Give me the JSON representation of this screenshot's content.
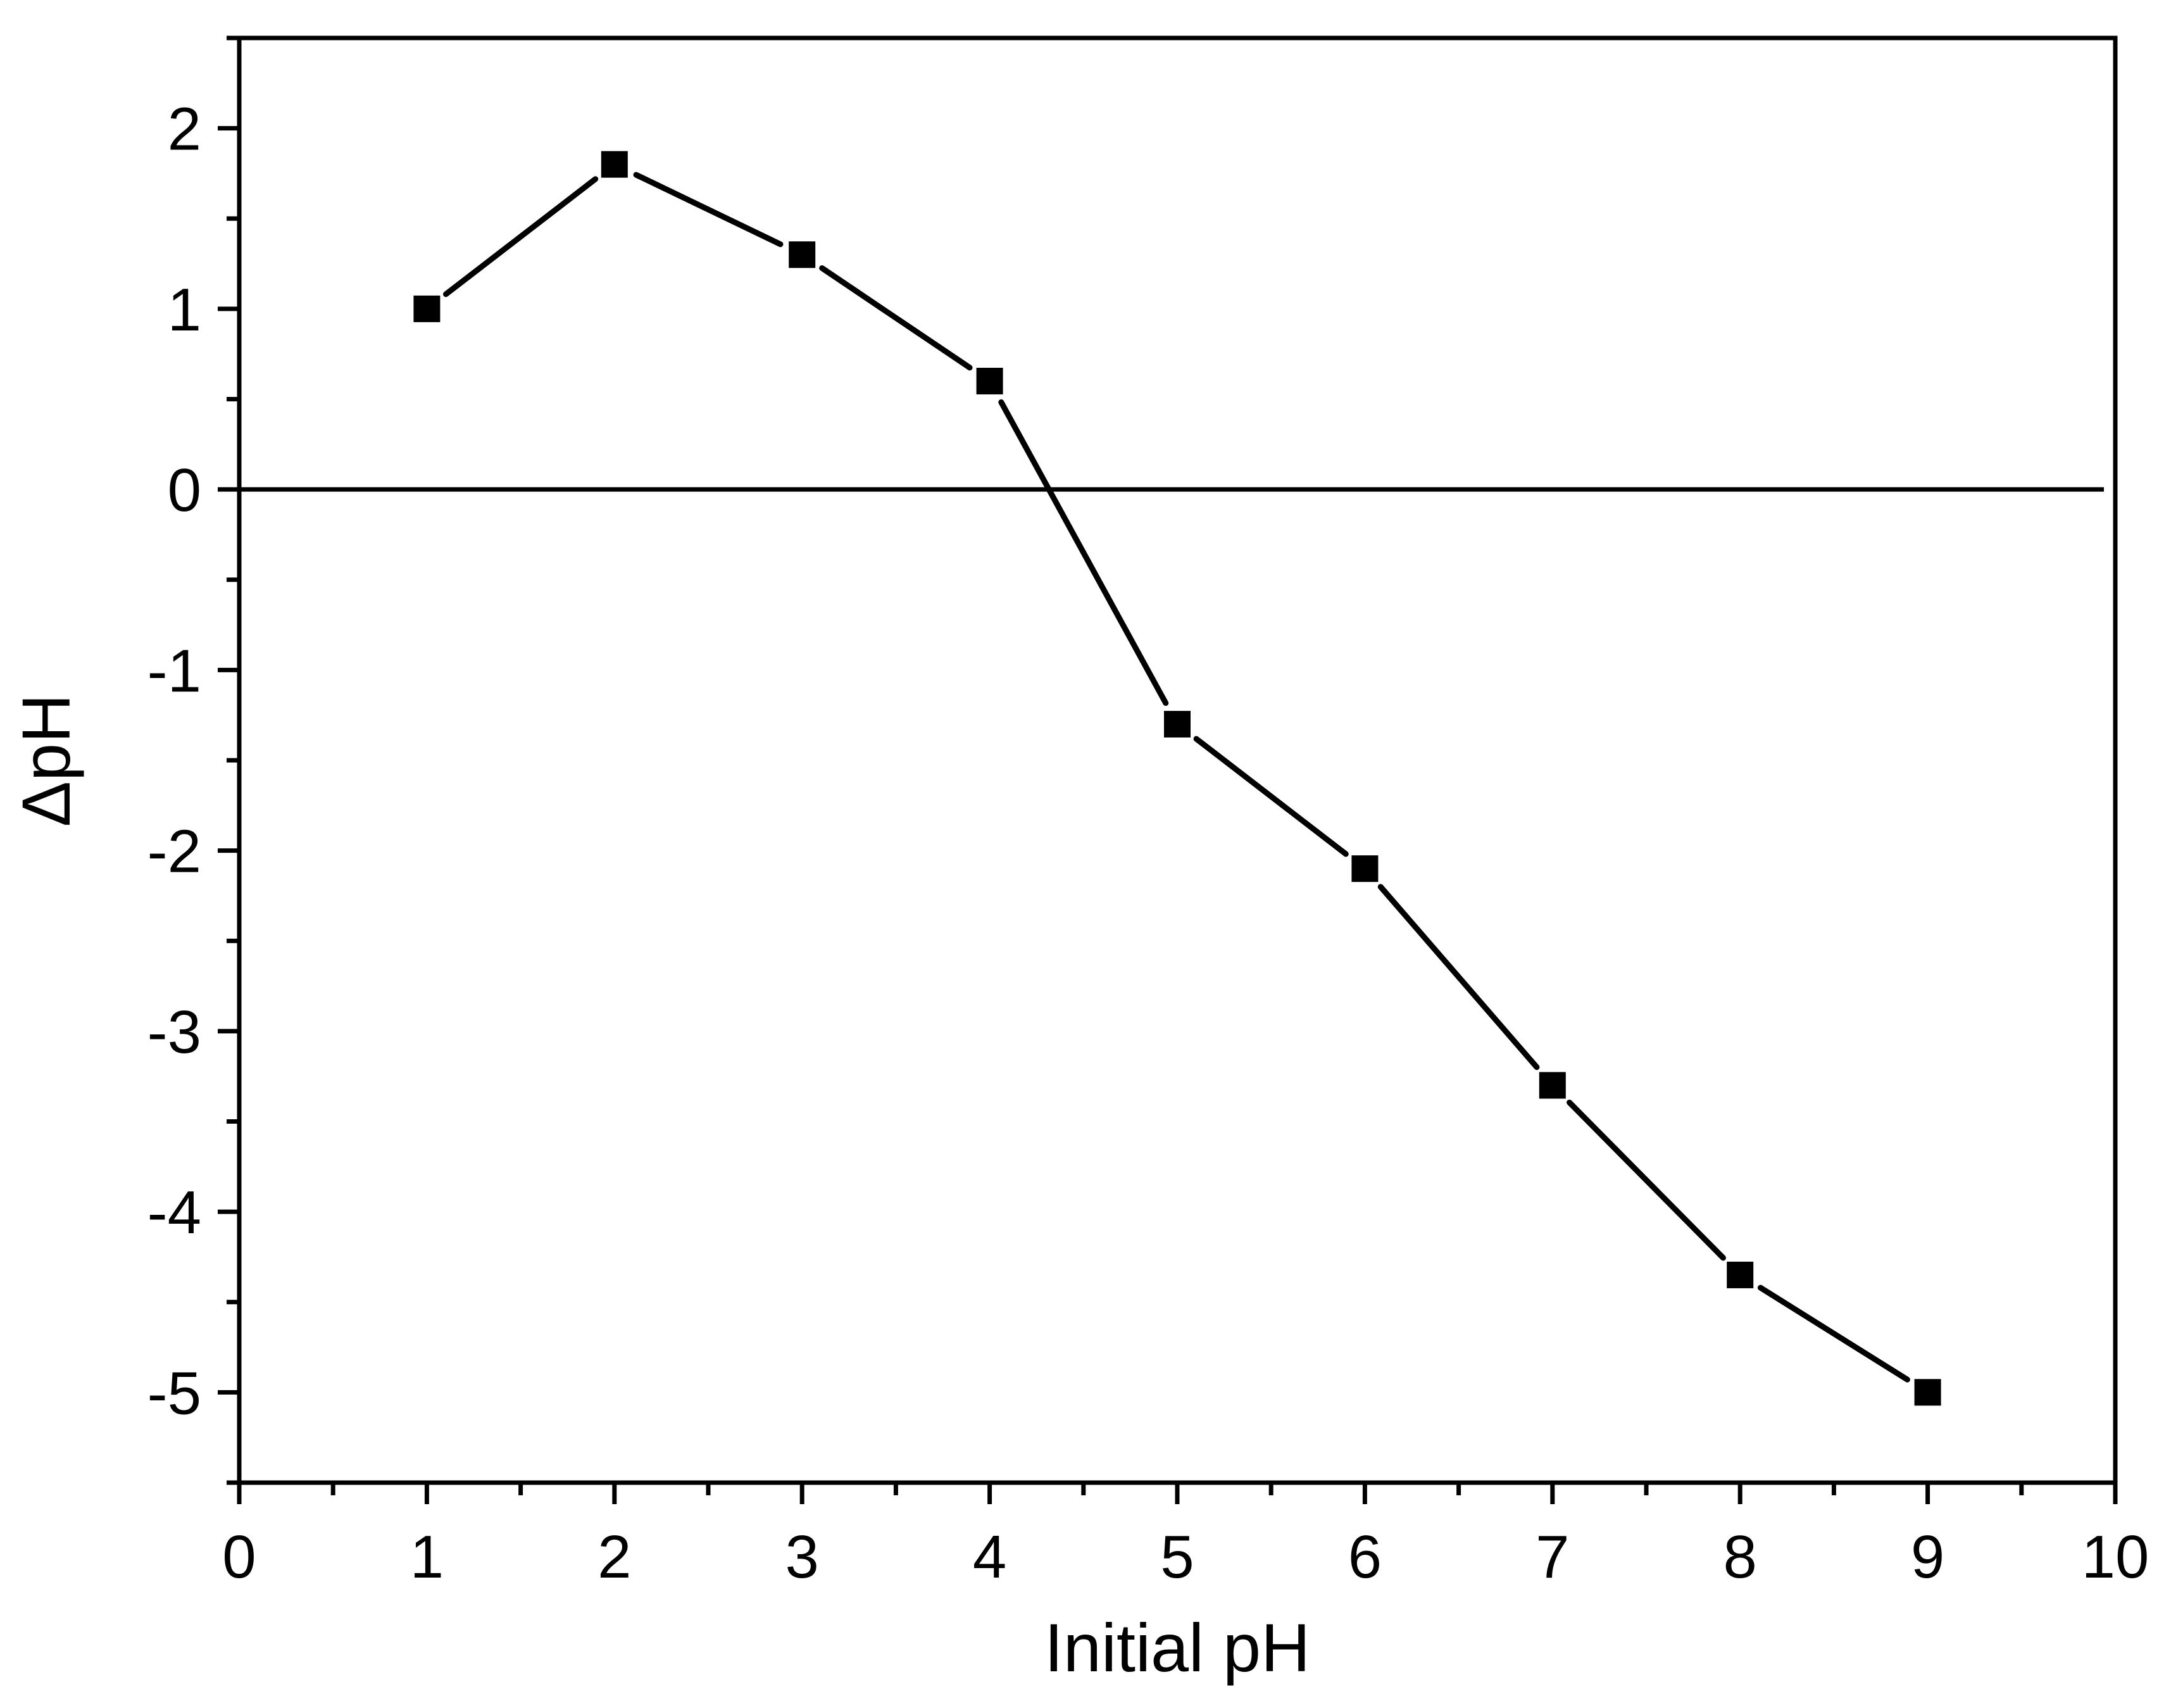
{
  "chart_data": {
    "type": "line",
    "title": "",
    "xlabel": "Initial pH",
    "ylabel": "ΔpH",
    "xlim": [
      0,
      10
    ],
    "ylim": [
      -5.5,
      2.5
    ],
    "x_ticks": [
      "0",
      "1",
      "2",
      "3",
      "4",
      "5",
      "6",
      "7",
      "8",
      "9",
      "10"
    ],
    "y_ticks": [
      "2",
      "1",
      "0",
      "-1",
      "-2",
      "-3",
      "-4",
      "-5"
    ],
    "grid": false,
    "legend": "none",
    "reference_line": 0,
    "series": [
      {
        "x": [
          1,
          2,
          3,
          4,
          5,
          6,
          7,
          8,
          9
        ],
        "y": [
          1.0,
          1.8,
          1.3,
          0.6,
          -1.3,
          -2.1,
          -3.3,
          -4.35,
          -5.0
        ],
        "marker": "square",
        "color": "#000000"
      }
    ]
  }
}
